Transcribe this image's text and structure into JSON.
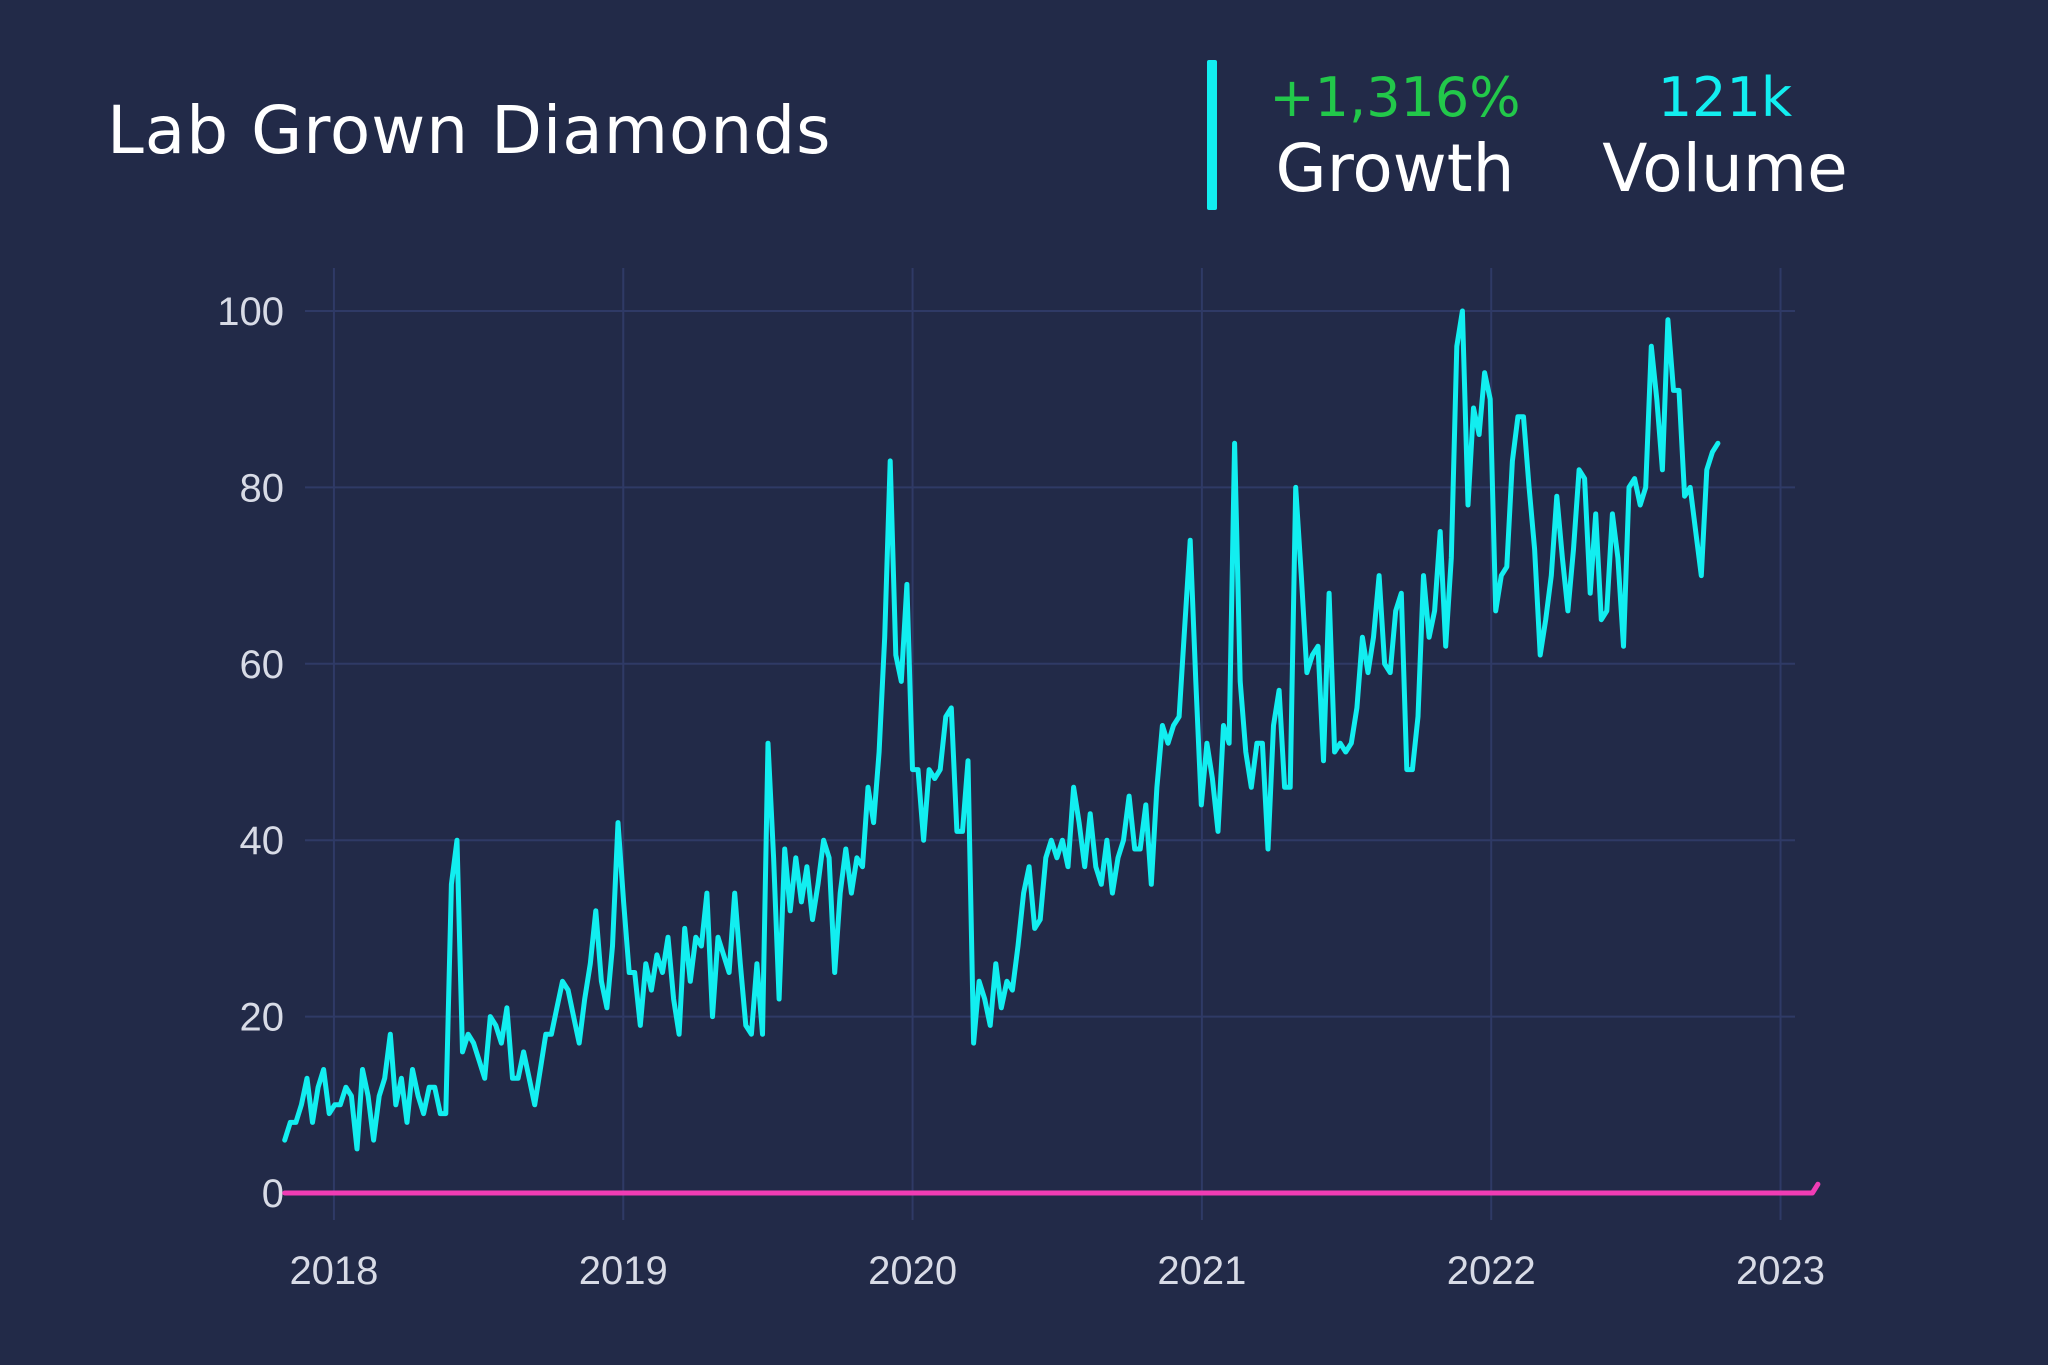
{
  "header": {
    "title": "Lab Grown Diamonds",
    "growth_value": "+1,316%",
    "growth_label": "Growth",
    "volume_value": "121k",
    "volume_label": "Volume"
  },
  "colors": {
    "background": "#222a48",
    "grid": "#2f3a66",
    "series_main": "#12eef0",
    "series_baseline": "#f03cb4",
    "growth_accent": "#22c84a",
    "volume_accent": "#12eef0"
  },
  "chart_data": {
    "type": "line",
    "title": "",
    "xlabel": "",
    "ylabel": "",
    "ylim": [
      0,
      100
    ],
    "xlim": [
      2017.9,
      2023.05
    ],
    "x_ticks": [
      "2018",
      "2019",
      "2020",
      "2021",
      "2022",
      "2023"
    ],
    "y_ticks": [
      "0",
      "20",
      "40",
      "60",
      "80",
      "100"
    ],
    "grid": true,
    "legend": "none",
    "series": [
      {
        "x_start": 2017.83,
        "x_step": 0.0192,
        "values": [
          6,
          8,
          8,
          10,
          13,
          8,
          12,
          14,
          9,
          10,
          10,
          12,
          11,
          5,
          14,
          11,
          6,
          11,
          13,
          18,
          10,
          13,
          8,
          14,
          11,
          9,
          12,
          12,
          9,
          9,
          35,
          40,
          16,
          18,
          17,
          15,
          13,
          20,
          19,
          17,
          21,
          13,
          13,
          16,
          13,
          10,
          14,
          18,
          18,
          21,
          24,
          23,
          20,
          17,
          22,
          26,
          32,
          24,
          21,
          28,
          42,
          33,
          25,
          25,
          19,
          26,
          23,
          27,
          25,
          29,
          22,
          18,
          30,
          24,
          29,
          28,
          34,
          20,
          29,
          27,
          25,
          34,
          26,
          19,
          18,
          26,
          18,
          51,
          38,
          22,
          39,
          32,
          38,
          33,
          37,
          31,
          35,
          40,
          38,
          25,
          34,
          39,
          34,
          38,
          37,
          46,
          42,
          50,
          63,
          83,
          61,
          58,
          69,
          48,
          48,
          40,
          48,
          47,
          48,
          54,
          55,
          41,
          41,
          49,
          17,
          24,
          22,
          19,
          26,
          21,
          24,
          23,
          28,
          34,
          37,
          30,
          31,
          38,
          40,
          38,
          40,
          37,
          46,
          42,
          37,
          43,
          37,
          35,
          40,
          34,
          38,
          40,
          45,
          39,
          39,
          44,
          35,
          46,
          53,
          51,
          53,
          54,
          64,
          74,
          58,
          44,
          51,
          47,
          41,
          53,
          51,
          85,
          58,
          50,
          46,
          51,
          51,
          39,
          53,
          57,
          46,
          46,
          80,
          70,
          59,
          61,
          62,
          49,
          68,
          50,
          51,
          50,
          51,
          55,
          63,
          59,
          63,
          70,
          60,
          59,
          66,
          68,
          48,
          48,
          54,
          70,
          63,
          66,
          75,
          62,
          72,
          96,
          100,
          78,
          89,
          86,
          93,
          90,
          66,
          70,
          71,
          83,
          88,
          88,
          80,
          73,
          61,
          65,
          70,
          79,
          72,
          66,
          73,
          82,
          81,
          68,
          77,
          65,
          66,
          77,
          72,
          62,
          80,
          81,
          78,
          80,
          96,
          90,
          82,
          99,
          91,
          91,
          79,
          80,
          75,
          70,
          82,
          84,
          85
        ]
      },
      {
        "x_start": 2017.83,
        "x_step": 0.0192,
        "values": [
          0,
          0,
          0,
          0,
          0,
          0,
          0,
          0,
          0,
          0,
          0,
          0,
          0,
          0,
          0,
          0,
          0,
          0,
          0,
          0,
          0,
          0,
          0,
          0,
          0,
          0,
          0,
          0,
          0,
          0,
          0,
          0,
          0,
          0,
          0,
          0,
          0,
          0,
          0,
          0,
          0,
          0,
          0,
          0,
          0,
          0,
          0,
          0,
          0,
          0,
          0,
          0,
          0,
          0,
          0,
          0,
          0,
          0,
          0,
          0,
          0,
          0,
          0,
          0,
          0,
          0,
          0,
          0,
          0,
          0,
          0,
          0,
          0,
          0,
          0,
          0,
          0,
          0,
          0,
          0,
          0,
          0,
          0,
          0,
          0,
          0,
          0,
          0,
          0,
          0,
          0,
          0,
          0,
          0,
          0,
          0,
          0,
          0,
          0,
          0,
          0,
          0,
          0,
          0,
          0,
          0,
          0,
          0,
          0,
          0,
          0,
          0,
          0,
          0,
          0,
          0,
          0,
          0,
          0,
          0,
          0,
          0,
          0,
          0,
          0,
          0,
          0,
          0,
          0,
          0,
          0,
          0,
          0,
          0,
          0,
          0,
          0,
          0,
          0,
          0,
          0,
          0,
          0,
          0,
          0,
          0,
          0,
          0,
          0,
          0,
          0,
          0,
          0,
          0,
          0,
          0,
          0,
          0,
          0,
          0,
          0,
          0,
          0,
          0,
          0,
          0,
          0,
          0,
          0,
          0,
          0,
          0,
          0,
          0,
          0,
          0,
          0,
          0,
          0,
          0,
          0,
          0,
          0,
          0,
          0,
          0,
          0,
          0,
          0,
          0,
          0,
          0,
          0,
          0,
          0,
          0,
          0,
          0,
          0,
          0,
          0,
          0,
          0,
          0,
          0,
          0,
          0,
          0,
          0,
          0,
          0,
          0,
          0,
          0,
          0,
          0,
          0,
          0,
          0,
          0,
          0,
          0,
          0,
          0,
          0,
          0,
          0,
          0,
          0,
          0,
          0,
          0,
          0,
          0,
          0,
          0,
          0,
          0,
          0,
          0,
          0,
          0,
          0,
          0,
          0,
          0,
          0,
          0,
          0,
          0,
          0,
          0,
          0,
          0,
          0,
          0,
          0,
          0,
          0,
          0,
          0,
          0,
          0,
          0,
          0,
          0,
          0,
          0,
          0,
          0,
          0,
          0,
          0,
          0,
          0,
          0,
          1
        ]
      }
    ]
  }
}
